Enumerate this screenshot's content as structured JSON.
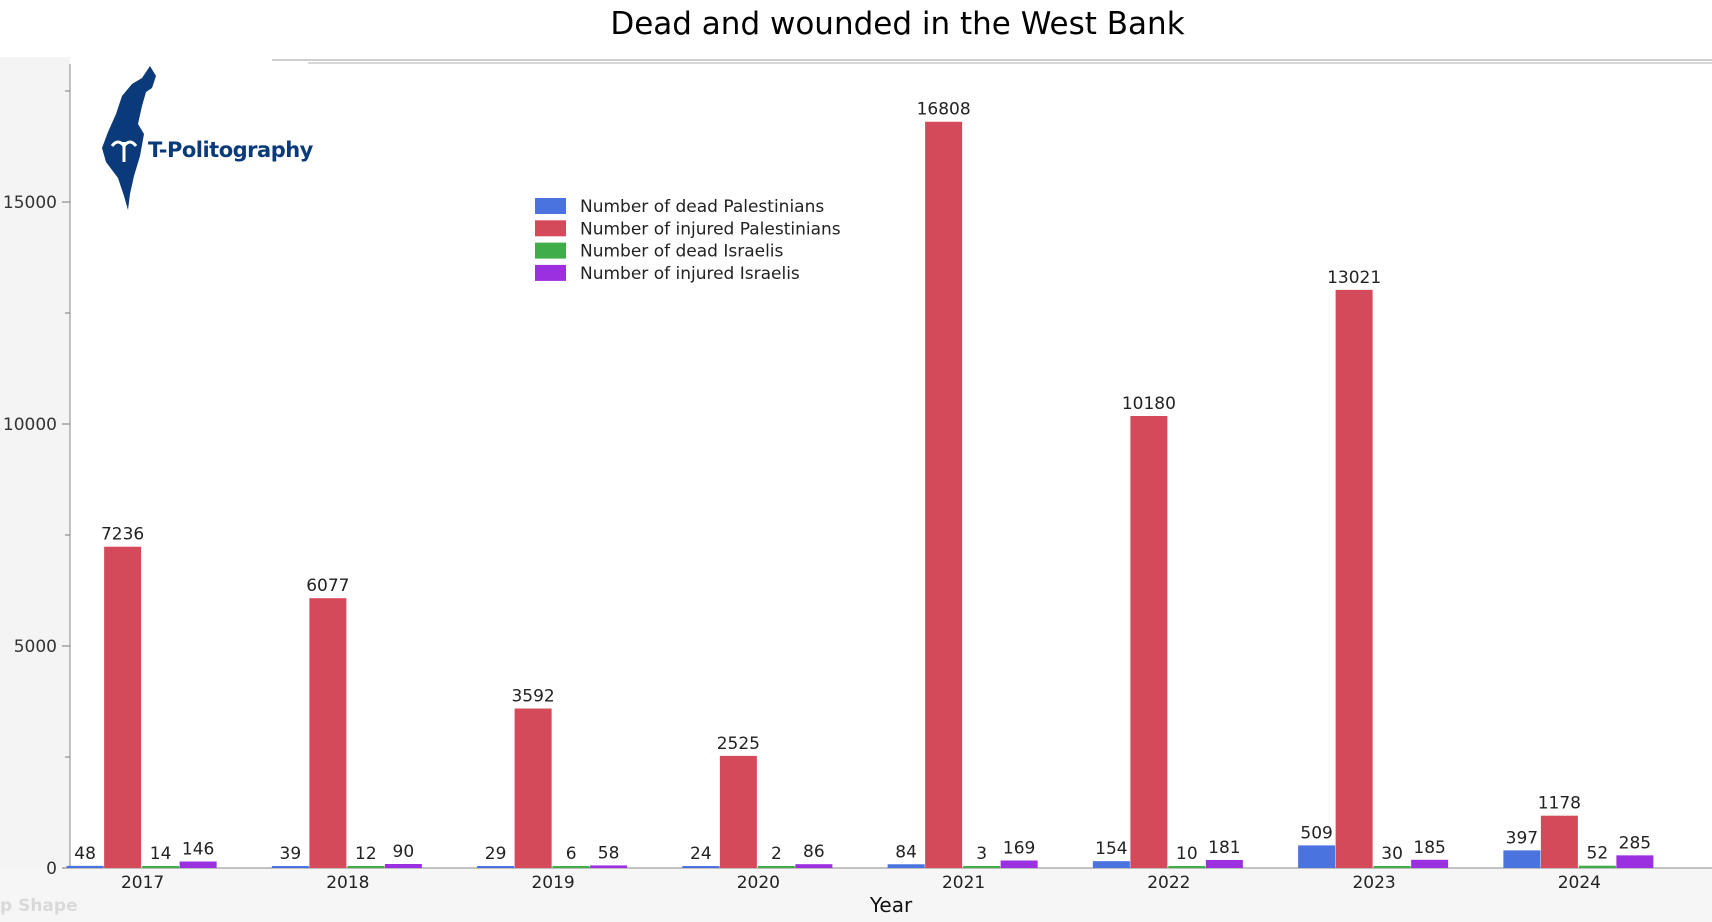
{
  "logo": {
    "text": "T-Politography"
  },
  "ghost_text": "p Shape",
  "chart_data": {
    "type": "bar",
    "title": "Dead and wounded in the West Bank",
    "xlabel": "Year",
    "ylabel": "",
    "ylim": [
      0,
      17500
    ],
    "yticks": [
      0,
      5000,
      10000,
      15000
    ],
    "grid": false,
    "legend_position": "top-center",
    "categories": [
      "2017",
      "2018",
      "2019",
      "2020",
      "2021",
      "2022",
      "2023",
      "2024"
    ],
    "series": [
      {
        "name": "Number of dead Palestinians",
        "color": "#4a73e0",
        "values": [
          48,
          39,
          29,
          24,
          84,
          154,
          509,
          397
        ]
      },
      {
        "name": "Number of injured Palestinians",
        "color": "#d44a5a",
        "values": [
          7236,
          6077,
          3592,
          2525,
          16808,
          10180,
          13021,
          1178
        ]
      },
      {
        "name": "Number of dead Israelis",
        "color": "#3fae49",
        "values": [
          14,
          12,
          6,
          2,
          3,
          10,
          30,
          52
        ]
      },
      {
        "name": "Number of injured Israelis",
        "color": "#9b30e0",
        "values": [
          146,
          90,
          58,
          86,
          169,
          181,
          185,
          285
        ]
      }
    ]
  }
}
